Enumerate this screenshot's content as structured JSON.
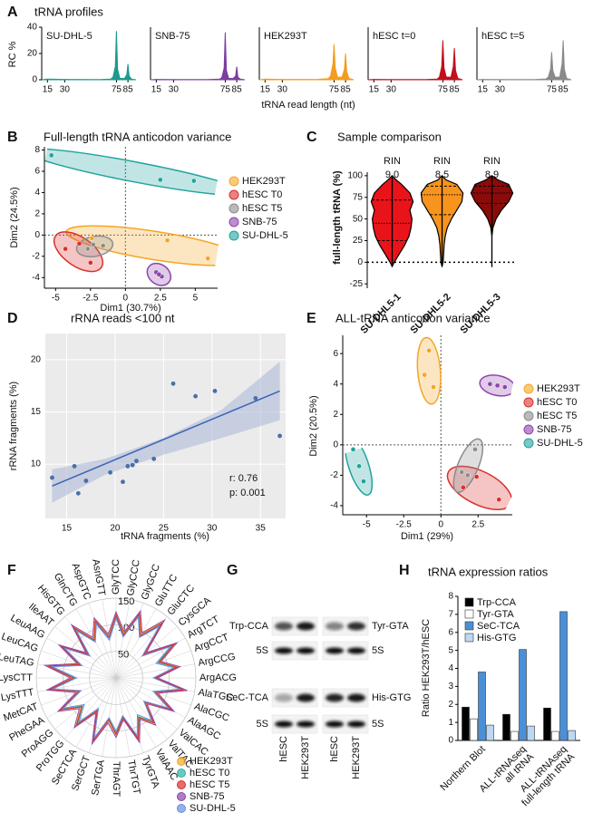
{
  "chart_data": [
    {
      "panel": "A",
      "type": "line",
      "facets": true,
      "title": "tRNA profiles",
      "x_label": "tRNA read length (nt)",
      "y_label": "RC %",
      "x": [
        10,
        15,
        30,
        60,
        70,
        72,
        74,
        75,
        76,
        78,
        82,
        84,
        85,
        86,
        88,
        92
      ],
      "xlim": [
        10,
        92
      ],
      "xticks": [
        15,
        30,
        75,
        85
      ],
      "ylim": [
        0,
        40
      ],
      "yticks": [
        0,
        20,
        40
      ],
      "series": [
        {
          "name": "SU-DHL-5",
          "color": "#1a9b8e",
          "values": [
            0,
            0.5,
            0.3,
            0.2,
            0.5,
            2,
            10,
            37,
            8,
            1,
            1,
            4,
            12,
            3,
            0.5,
            0
          ]
        },
        {
          "name": "SNB-75",
          "color": "#7b3fa0",
          "values": [
            0,
            0.3,
            0.2,
            0.2,
            0.5,
            1.5,
            9,
            36,
            7,
            1,
            1,
            3,
            10,
            2,
            0.5,
            0
          ]
        },
        {
          "name": "HEK293T",
          "color": "#f39c1f",
          "values": [
            0,
            0.5,
            0.3,
            0.3,
            0.8,
            3,
            12,
            27,
            9,
            2,
            2,
            8,
            20,
            6,
            1,
            0
          ]
        },
        {
          "name": "hESC t=0",
          "color": "#c0101c",
          "values": [
            0,
            0.3,
            0.2,
            0.2,
            0.5,
            2,
            10,
            30,
            9,
            2,
            2,
            10,
            24,
            7,
            1,
            0
          ]
        },
        {
          "name": "hESC t=5",
          "color": "#8a8a8a",
          "values": [
            0,
            0.3,
            0.2,
            0.2,
            0.6,
            2,
            8,
            21,
            7,
            2,
            2,
            12,
            30,
            8,
            1,
            0
          ]
        }
      ]
    },
    {
      "panel": "B",
      "type": "scatter",
      "title": "Full-length tRNA anticodon variance",
      "x_label": "Dim1 (30.7%)",
      "y_label": "Dim2 (24.5%)",
      "xlim": [
        -5.8,
        6.6
      ],
      "xticks": [
        -5,
        -2.5,
        0,
        2.5,
        5
      ],
      "ylim": [
        -5,
        8.3
      ],
      "yticks": [
        -4,
        -2,
        0,
        2,
        4,
        6,
        8
      ],
      "zero_lines": true,
      "ellipses": true,
      "legend": "right",
      "series": [
        {
          "name": "HEK293T",
          "color": "#f5a623",
          "x": [
            5.9,
            3.0,
            -2.4
          ],
          "values": [
            -2.2,
            -0.5,
            -0.3
          ]
        },
        {
          "name": "hESC T0",
          "color": "#d9302c",
          "x": [
            -4.3,
            -2.5,
            -3.3
          ],
          "values": [
            -1.3,
            -2.6,
            -0.8
          ]
        },
        {
          "name": "hESC T5",
          "color": "#8c8c8c",
          "x": [
            -2.3,
            -2.7,
            -1.6
          ],
          "values": [
            -0.9,
            -1.3,
            -1.0
          ]
        },
        {
          "name": "SNB-75",
          "color": "#8e44ad",
          "x": [
            2.2,
            2.6,
            2.4
          ],
          "values": [
            -3.5,
            -3.9,
            -3.7
          ]
        },
        {
          "name": "SU-DHL-5",
          "color": "#20a39e",
          "x": [
            -5.3,
            2.5,
            4.9
          ],
          "values": [
            7.5,
            5.2,
            5.1
          ]
        }
      ]
    },
    {
      "panel": "C",
      "type": "violin",
      "title": "Sample comparison",
      "y_label": "full-length tRNA (%)",
      "categories": [
        "SU-DHL5-1",
        "SU-DHL5-2",
        "SU-DHL5-3"
      ],
      "colors": [
        "#e8141a",
        "#f7941d",
        "#8b0a0a"
      ],
      "values": [
        45,
        78,
        80
      ],
      "q1": [
        25,
        55,
        68
      ],
      "q3": [
        72,
        88,
        88
      ],
      "density_y": [
        -5,
        0,
        10,
        20,
        30,
        40,
        50,
        60,
        70,
        80,
        90,
        95,
        100
      ],
      "density": [
        [
          0,
          0.1,
          0.35,
          0.6,
          0.8,
          0.9,
          0.95,
          0.85,
          1.0,
          0.85,
          0.45,
          0.2,
          0
        ],
        [
          0,
          0.05,
          0.08,
          0.1,
          0.15,
          0.25,
          0.45,
          0.7,
          0.95,
          1.0,
          0.7,
          0.2,
          0
        ],
        [
          0,
          0,
          0,
          0,
          0,
          0.05,
          0.2,
          0.45,
          0.8,
          1.0,
          0.8,
          0.3,
          0
        ]
      ],
      "annotation_label": "RIN",
      "annotations": [
        {
          "value": 9,
          "label": "9.0"
        },
        8.5,
        8.9
      ],
      "ylim": [
        -30,
        125
      ],
      "yticks": [
        -25,
        0,
        25,
        50,
        75,
        100
      ],
      "zero_line": true
    },
    {
      "panel": "D",
      "type": "scatter",
      "title": "rRNA reads <100 nt",
      "x_label": "tRNA fragments (%)",
      "y_label": "rRNA fragments (%)",
      "xlim": [
        12.8,
        37.6
      ],
      "xticks": [
        15,
        20,
        25,
        30,
        35
      ],
      "ylim": [
        4.8,
        22.5
      ],
      "yticks": [
        10,
        15,
        20
      ],
      "grid": true,
      "color": "#4a6fa5",
      "x": [
        13.5,
        15.8,
        16.2,
        17,
        19.5,
        20.8,
        21.3,
        21.8,
        22.2,
        24,
        26,
        28.3,
        30.3,
        34.5,
        37
      ],
      "values": [
        8.7,
        9.8,
        7.2,
        8.4,
        9.2,
        8.3,
        9.8,
        9.9,
        10.3,
        10.5,
        17.7,
        16.5,
        17,
        16.3,
        12.7
      ],
      "fit": {
        "x": [
          13.5,
          37
        ],
        "values": [
          7.9,
          17
        ]
      },
      "band": {
        "x": [
          13.5,
          19,
          25,
          31,
          37
        ],
        "lower": [
          6.3,
          9.0,
          10.9,
          12.5,
          14.2
        ],
        "upper": [
          9.5,
          10.5,
          12.5,
          15.2,
          19.8
        ]
      },
      "annotations": [
        "r: 0.76",
        "p: 0.001"
      ]
    },
    {
      "panel": "E",
      "type": "scatter",
      "title": "ALL-tRNA anticodon variance",
      "x_label": "Dim1 (29%)",
      "y_label": "Dim2 (20.5%)",
      "xlim": [
        -6.6,
        4.8
      ],
      "xticks": [
        -5,
        -2.5,
        0,
        2.5
      ],
      "ylim": [
        -4.6,
        7.2
      ],
      "yticks": [
        -4,
        -2,
        0,
        2,
        4,
        6
      ],
      "zero_lines": true,
      "ellipses": true,
      "legend": "right",
      "series": [
        {
          "name": "HEK293T",
          "color": "#f5a623",
          "x": [
            -0.8,
            -1.1,
            -0.5
          ],
          "values": [
            6.2,
            4.6,
            3.8
          ]
        },
        {
          "name": "hESC T0",
          "color": "#d9302c",
          "x": [
            1.5,
            3.9,
            2.4
          ],
          "values": [
            -2.8,
            -3.6,
            -2.1
          ]
        },
        {
          "name": "hESC T5",
          "color": "#8c8c8c",
          "x": [
            1.4,
            2.3,
            1.8
          ],
          "values": [
            -1.8,
            -0.3,
            -2.0
          ]
        },
        {
          "name": "SNB-75",
          "color": "#8e44ad",
          "x": [
            3.3,
            3.8,
            4.3
          ],
          "values": [
            4.0,
            3.9,
            3.8
          ]
        },
        {
          "name": "SU-DHL-5",
          "color": "#20a39e",
          "x": [
            -5.9,
            -5.5,
            -5.2
          ],
          "values": [
            -0.3,
            -1.4,
            -2.4
          ]
        }
      ]
    },
    {
      "panel": "F",
      "type": "radar",
      "rlim": [
        0,
        150
      ],
      "rticks": [
        50,
        100,
        150
      ],
      "labels": [
        "GlyTCC",
        "GlyCCC",
        "GlyGCC",
        "GluTTC",
        "GluCTC",
        "CysGCA",
        "ArgTCT",
        "ArgCCT",
        "ArgCCG",
        "ArgACG",
        "AlaTGC",
        "AlaCGC",
        "AlaAGC",
        "ValCAC",
        "ValTAC",
        "ValAAC",
        "TyrGTA",
        "ThrTGT",
        "ThrAGT",
        "SerTGA",
        "SerGCT",
        "SeCTCA",
        "ProTGG",
        "ProAGG",
        "PheGAA",
        "MetCAT",
        "LysTTT",
        "LysCTT",
        "LeuTAG",
        "LeuCAG",
        "LeuAAG",
        "IleAAT",
        "HisGTG",
        "GlnCTG",
        "AspGTC",
        "AsnGTT"
      ],
      "series": [
        {
          "name": "HEK293T",
          "color": "#f5a623",
          "values": [
            120,
            85,
            130,
            95,
            138,
            70,
            128,
            88,
            118,
            75,
            132,
            80,
            122,
            72,
            112,
            88,
            125,
            78,
            108,
            82,
            128,
            72,
            118,
            86,
            122,
            76,
            128,
            82,
            132,
            74,
            120,
            70,
            126,
            84,
            116,
            80
          ]
        },
        {
          "name": "hESC T0",
          "color": "#2bb3a3",
          "values": [
            115,
            80,
            126,
            90,
            130,
            66,
            122,
            84,
            114,
            72,
            126,
            78,
            118,
            70,
            108,
            84,
            120,
            74,
            104,
            78,
            124,
            70,
            112,
            82,
            118,
            72,
            124,
            78,
            126,
            72,
            116,
            68,
            120,
            80,
            112,
            76
          ]
        },
        {
          "name": "hESC T5",
          "color": "#d9302c",
          "values": [
            118,
            82,
            128,
            92,
            134,
            68,
            125,
            86,
            116,
            74,
            129,
            79,
            120,
            71,
            110,
            86,
            122,
            76,
            106,
            80,
            126,
            71,
            115,
            84,
            120,
            74,
            126,
            80,
            129,
            73,
            118,
            69,
            123,
            82,
            114,
            78
          ]
        },
        {
          "name": "SNB-75",
          "color": "#8e44ad",
          "values": [
            124,
            88,
            134,
            98,
            142,
            74,
            132,
            90,
            122,
            78,
            136,
            84,
            126,
            76,
            116,
            90,
            129,
            80,
            112,
            86,
            132,
            76,
            122,
            90,
            126,
            80,
            132,
            86,
            136,
            78,
            124,
            74,
            130,
            88,
            120,
            84
          ]
        },
        {
          "name": "SU-DHL-5",
          "color": "#6a8fe0",
          "values": [
            112,
            78,
            122,
            88,
            126,
            64,
            118,
            80,
            110,
            70,
            122,
            74,
            114,
            68,
            104,
            80,
            116,
            72,
            100,
            76,
            120,
            66,
            108,
            78,
            114,
            70,
            120,
            74,
            122,
            68,
            112,
            64,
            116,
            78,
            108,
            72
          ]
        }
      ]
    },
    {
      "panel": "H",
      "type": "bar",
      "title": "tRNA expression ratios",
      "y_label": "Ratio HEK293T/hESC",
      "categories": [
        "Northern Blot",
        "ALL-tRNAseq\nall tRNA",
        "ALL-tRNAseq\nfull-length tRNA"
      ],
      "ylim": [
        0,
        8
      ],
      "yticks": [
        0,
        1,
        2,
        3,
        4,
        5,
        6,
        7,
        8
      ],
      "legend": "top-left",
      "series": [
        {
          "name": "Trp-CCA",
          "color": "#000000",
          "values": [
            1.85,
            1.45,
            1.8
          ]
        },
        {
          "name": "Tyr-GTA",
          "color": "#ffffff",
          "values": [
            1.2,
            0.5,
            0.5
          ]
        },
        {
          "name": "SeC-TCA",
          "color": "#4a90d9",
          "values": [
            3.8,
            5.05,
            7.15
          ]
        },
        {
          "name": "His-GTG",
          "color": "#bcd8f5",
          "values": [
            0.85,
            0.8,
            0.55
          ]
        }
      ]
    }
  ],
  "blot": {
    "panel": "G",
    "left_labels": [
      "Trp-CCA",
      "5S",
      "SeC-TCA",
      "5S"
    ],
    "right_labels": [
      "Tyr-GTA",
      "5S",
      "His-GTG",
      "5S"
    ],
    "lanes": [
      "hESC",
      "HEK293T",
      "hESC",
      "HEK293T"
    ]
  }
}
